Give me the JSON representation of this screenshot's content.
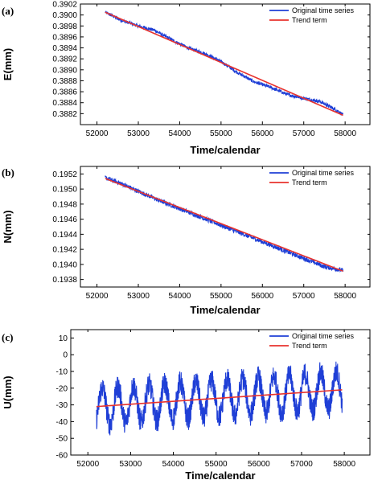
{
  "chart_data": [
    {
      "type": "line",
      "panel_label": "(a)",
      "xlabel": "Time/calendar",
      "ylabel": "E(mm)",
      "xlim": [
        51600,
        58600
      ],
      "ylim": [
        0.388,
        0.3902
      ],
      "x_ticks": [
        52000,
        53000,
        54000,
        55000,
        56000,
        57000,
        58000
      ],
      "y_ticks": [
        0.3882,
        0.3884,
        0.3886,
        0.3888,
        0.389,
        0.3892,
        0.3894,
        0.3896,
        0.3898,
        0.39,
        0.3902
      ],
      "y_tick_labels": [
        "0.3882",
        "0.3884",
        "0.3886",
        "0.3888",
        "0.3890",
        "0.3892",
        "0.3894",
        "0.3896",
        "0.3898",
        "0.3900",
        "0.3902"
      ],
      "legend_position": "top-right",
      "series": [
        {
          "name": "Original time series",
          "color": "#1f3fd6",
          "x": [
            52200,
            52600,
            53000,
            53400,
            53600,
            53800,
            54200,
            54600,
            55000,
            55400,
            55800,
            56200,
            56600,
            57000,
            57400,
            57800,
            57950
          ],
          "y": [
            0.39005,
            0.3899,
            0.3898,
            0.38972,
            0.38963,
            0.38955,
            0.3894,
            0.3893,
            0.38915,
            0.38895,
            0.38878,
            0.38868,
            0.38855,
            0.38848,
            0.38842,
            0.38826,
            0.38818
          ],
          "noise_amplitude": 3e-05
        },
        {
          "name": "Trend term",
          "color": "#e8322d",
          "x": [
            52200,
            57950
          ],
          "y": [
            0.39005,
            0.38817
          ]
        }
      ]
    },
    {
      "type": "line",
      "panel_label": "(b)",
      "xlabel": "Time/calendar",
      "ylabel": "N(mm)",
      "xlim": [
        51600,
        58600
      ],
      "ylim": [
        0.1937,
        0.1953
      ],
      "x_ticks": [
        52000,
        53000,
        54000,
        55000,
        56000,
        57000,
        58000
      ],
      "y_ticks": [
        0.1938,
        0.194,
        0.1942,
        0.1944,
        0.1946,
        0.1948,
        0.195,
        0.1952
      ],
      "y_tick_labels": [
        "0.1938",
        "0.1940",
        "0.1942",
        "0.1944",
        "0.1946",
        "0.1948",
        "0.1950",
        "0.1952"
      ],
      "legend_position": "top-right",
      "series": [
        {
          "name": "Original time series",
          "color": "#1f3fd6",
          "x": [
            52200,
            52600,
            53000,
            53500,
            54000,
            54500,
            55000,
            55500,
            56000,
            56500,
            57000,
            57500,
            57950
          ],
          "y": [
            0.19515,
            0.19507,
            0.19497,
            0.19485,
            0.19474,
            0.19463,
            0.19452,
            0.19441,
            0.1943,
            0.19419,
            0.19408,
            0.19397,
            0.19392
          ],
          "noise_amplitude": 3e-05
        },
        {
          "name": "Trend term",
          "color": "#e8322d",
          "x": [
            52200,
            57950
          ],
          "y": [
            0.19514,
            0.19391
          ]
        }
      ]
    },
    {
      "type": "line",
      "panel_label": "(c)",
      "xlabel": "Time/calendar",
      "ylabel": "U(mm)",
      "xlim": [
        51600,
        58600
      ],
      "ylim": [
        -60,
        15
      ],
      "x_ticks": [
        52000,
        53000,
        54000,
        55000,
        56000,
        57000,
        58000
      ],
      "y_ticks": [
        -60,
        -50,
        -40,
        -30,
        -20,
        -10,
        0,
        10
      ],
      "y_tick_labels": [
        "-60",
        "-50",
        "-40",
        "-30",
        "-20",
        "-10",
        "0",
        "10"
      ],
      "legend_position": "top-right",
      "series": [
        {
          "name": "Original time series",
          "color": "#1f3fd6",
          "x_start": 52200,
          "x_end": 57950,
          "trend_start": -31,
          "trend_end": -21,
          "annual_amplitude": 11,
          "period_days": 365,
          "noise_amplitude": 7,
          "y_min_observed": -55,
          "y_max_observed": 0
        },
        {
          "name": "Trend term",
          "color": "#e8322d",
          "x": [
            52200,
            57950
          ],
          "y": [
            -31,
            -21
          ]
        }
      ]
    }
  ]
}
